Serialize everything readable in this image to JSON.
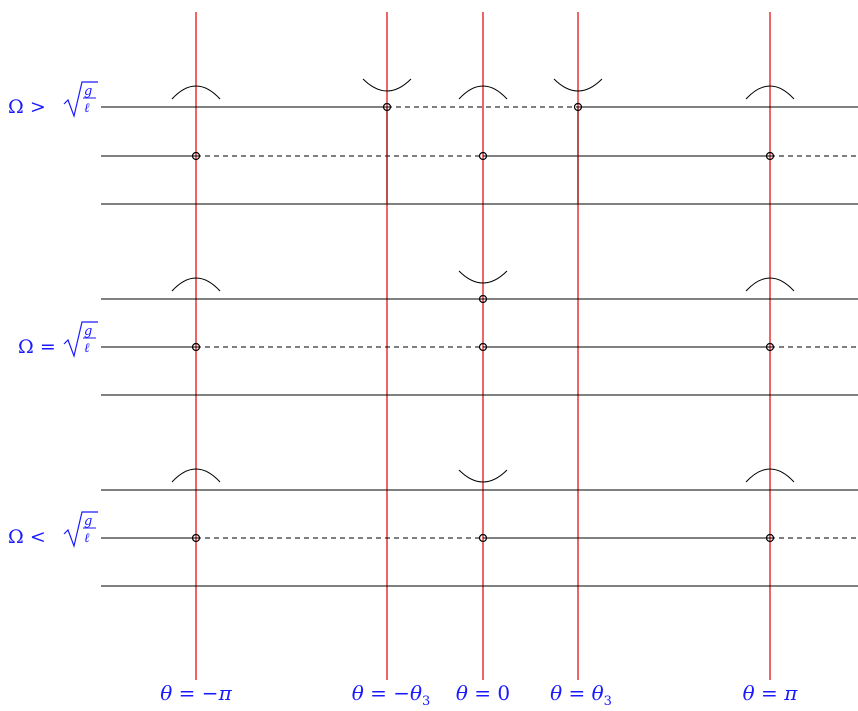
{
  "colors": {
    "ink": "#000000",
    "vertical_lines": "#e00000",
    "labels": "#1a1aff"
  },
  "bottom_labels": [
    {
      "var": "θ",
      "eq": " = ",
      "neg": "−",
      "val": "π",
      "sub": ""
    },
    {
      "var": "θ",
      "eq": " = ",
      "neg": "−",
      "val": "θ",
      "sub": "3"
    },
    {
      "var": "θ",
      "eq": " = ",
      "neg": "",
      "val": "0",
      "sub": ""
    },
    {
      "var": "θ",
      "eq": " = ",
      "neg": "",
      "val": "θ",
      "sub": "3"
    },
    {
      "var": "θ",
      "eq": " = ",
      "neg": "",
      "val": "π",
      "sub": ""
    }
  ],
  "panels": [
    {
      "label": {
        "omega": "Ω",
        "rel": ">",
        "g": "g",
        "l": "ℓ"
      },
      "points": [
        {
          "pos": "-pi",
          "line": "mid",
          "cap": "hill"
        },
        {
          "pos": "-theta3",
          "line": "top",
          "cap": "valley"
        },
        {
          "pos": "0",
          "line": "mid",
          "cap": "hill"
        },
        {
          "pos": "theta3",
          "line": "top",
          "cap": "valley"
        },
        {
          "pos": "pi",
          "line": "mid",
          "cap": "hill"
        }
      ],
      "dashed": [
        {
          "line": "top",
          "from": "-theta3",
          "to": "theta3"
        },
        {
          "line": "mid",
          "from": "-pi",
          "to": "0"
        },
        {
          "line": "mid",
          "from": "pi",
          "to": "end"
        }
      ]
    },
    {
      "label": {
        "omega": "Ω",
        "rel": "=",
        "g": "g",
        "l": "ℓ"
      },
      "points": [
        {
          "pos": "-pi",
          "line": "mid",
          "cap": "hill"
        },
        {
          "pos": "0",
          "line": "top",
          "cap": "valley"
        },
        {
          "pos": "0",
          "line": "mid",
          "cap": ""
        },
        {
          "pos": "pi",
          "line": "mid",
          "cap": "hill"
        }
      ],
      "dashed": [
        {
          "line": "mid",
          "from": "-pi",
          "to": "0"
        },
        {
          "line": "mid",
          "from": "pi",
          "to": "end"
        }
      ]
    },
    {
      "label": {
        "omega": "Ω",
        "rel": "<",
        "g": "g",
        "l": "ℓ"
      },
      "points": [
        {
          "pos": "-pi",
          "line": "mid",
          "cap": "hill"
        },
        {
          "pos": "0",
          "line": "mid",
          "cap": "valley"
        },
        {
          "pos": "pi",
          "line": "mid",
          "cap": "hill"
        }
      ],
      "dashed": [
        {
          "line": "mid",
          "from": "-pi",
          "to": "0"
        },
        {
          "line": "mid",
          "from": "pi",
          "to": "end"
        }
      ]
    }
  ]
}
